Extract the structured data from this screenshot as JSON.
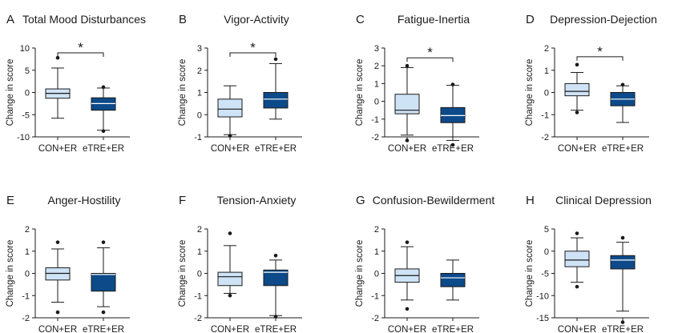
{
  "colors": {
    "con": "#cfe3f6",
    "etre": "#0d4a8a",
    "ink": "#1a1a1a"
  },
  "chart_data": [
    {
      "type": "box",
      "letter": "A",
      "title": "Total Mood Disturbances",
      "ylabel": "Change in score",
      "ylim": [
        -10,
        10
      ],
      "yticks": [
        -10,
        -5,
        0,
        5,
        10
      ],
      "categories": [
        "CON+ER",
        "eTRE+ER"
      ],
      "series": [
        {
          "name": "CON+ER",
          "whisker_low": -5.8,
          "q1": -1.3,
          "median": -0.2,
          "q3": 0.8,
          "whisker_high": 5.5,
          "outliers": [
            7.8
          ]
        },
        {
          "name": "eTRE+ER",
          "whisker_low": -8.5,
          "q1": -4.0,
          "median": -2.5,
          "q3": -1.2,
          "whisker_high": 1.0,
          "outliers": [
            1.2,
            -8.7
          ]
        }
      ],
      "significance": "*"
    },
    {
      "type": "box",
      "letter": "B",
      "title": "Vigor-Activity",
      "ylabel": "Change in score",
      "ylim": [
        -1,
        3
      ],
      "yticks": [
        -1,
        0,
        1,
        2,
        3
      ],
      "categories": [
        "CON+ER",
        "eTRE+ER"
      ],
      "series": [
        {
          "name": "CON+ER",
          "whisker_low": -0.9,
          "q1": -0.1,
          "median": 0.25,
          "q3": 0.7,
          "whisker_high": 1.3,
          "outliers": [
            -0.95
          ]
        },
        {
          "name": "eTRE+ER",
          "whisker_low": -0.2,
          "q1": 0.3,
          "median": 0.7,
          "q3": 1.0,
          "whisker_high": 2.3,
          "outliers": [
            2.5
          ]
        }
      ],
      "significance": "*"
    },
    {
      "type": "box",
      "letter": "C",
      "title": "Fatigue-Inertia",
      "ylabel": "Change in score",
      "ylim": [
        -2,
        3
      ],
      "yticks": [
        -2,
        -1,
        0,
        1,
        2,
        3
      ],
      "categories": [
        "CON+ER",
        "eTRE+ER"
      ],
      "series": [
        {
          "name": "CON+ER",
          "whisker_low": -1.9,
          "q1": -0.7,
          "median": -0.5,
          "q3": 0.4,
          "whisker_high": 1.9,
          "outliers": [
            -2.2,
            2.0
          ]
        },
        {
          "name": "eTRE+ER",
          "whisker_low": -2.2,
          "q1": -1.2,
          "median": -0.8,
          "q3": -0.35,
          "whisker_high": 0.9,
          "outliers": [
            -2.45,
            0.95
          ]
        }
      ],
      "significance": "*"
    },
    {
      "type": "box",
      "letter": "D",
      "title": "Depression-Dejection",
      "ylabel": "Change in score",
      "ylim": [
        -2,
        2
      ],
      "yticks": [
        -2,
        -1,
        0,
        1,
        2
      ],
      "categories": [
        "CON+ER",
        "eTRE+ER"
      ],
      "series": [
        {
          "name": "CON+ER",
          "whisker_low": -0.8,
          "q1": -0.15,
          "median": 0.05,
          "q3": 0.4,
          "whisker_high": 0.9,
          "outliers": [
            -0.9,
            1.25
          ]
        },
        {
          "name": "eTRE+ER",
          "whisker_low": -1.35,
          "q1": -0.6,
          "median": -0.3,
          "q3": 0.0,
          "whisker_high": 0.3,
          "outliers": [
            0.35
          ]
        }
      ],
      "significance": "*"
    },
    {
      "type": "box",
      "letter": "E",
      "title": "Anger-Hostility",
      "ylabel": "Change in score",
      "ylim": [
        -2,
        2
      ],
      "yticks": [
        -2,
        -1,
        0,
        1,
        2
      ],
      "categories": [
        "CON+ER",
        "eTRE+ER"
      ],
      "series": [
        {
          "name": "CON+ER",
          "whisker_low": -1.3,
          "q1": -0.3,
          "median": 0.0,
          "q3": 0.25,
          "whisker_high": 1.1,
          "outliers": [
            1.4,
            -1.75
          ]
        },
        {
          "name": "eTRE+ER",
          "whisker_low": -1.5,
          "q1": -0.8,
          "median": -0.05,
          "q3": 0.0,
          "whisker_high": 1.15,
          "outliers": [
            1.4,
            -1.75
          ]
        }
      ],
      "significance": ""
    },
    {
      "type": "box",
      "letter": "F",
      "title": "Tension-Anxiety",
      "ylabel": "Change in score",
      "ylim": [
        -2,
        2
      ],
      "yticks": [
        -2,
        -1,
        0,
        1,
        2
      ],
      "categories": [
        "CON+ER",
        "eTRE+ER"
      ],
      "series": [
        {
          "name": "CON+ER",
          "whisker_low": -0.9,
          "q1": -0.55,
          "median": -0.15,
          "q3": 0.05,
          "whisker_high": 1.25,
          "outliers": [
            1.8,
            -1.0
          ]
        },
        {
          "name": "eTRE+ER",
          "whisker_low": -1.9,
          "q1": -0.55,
          "median": 0.05,
          "q3": 0.15,
          "whisker_high": 0.6,
          "outliers": [
            0.8,
            -1.95
          ]
        }
      ],
      "significance": ""
    },
    {
      "type": "box",
      "letter": "G",
      "title": "Confusion-Bewilderment",
      "ylabel": "Change in score",
      "ylim": [
        -2,
        2
      ],
      "yticks": [
        -2,
        -1,
        0,
        1,
        2
      ],
      "categories": [
        "CON+ER",
        "eTRE+ER"
      ],
      "series": [
        {
          "name": "CON+ER",
          "whisker_low": -1.2,
          "q1": -0.4,
          "median": -0.1,
          "q3": 0.2,
          "whisker_high": 1.2,
          "outliers": [
            1.4,
            -1.6
          ]
        },
        {
          "name": "eTRE+ER",
          "whisker_low": -1.2,
          "q1": -0.6,
          "median": -0.2,
          "q3": 0.0,
          "whisker_high": 0.6,
          "outliers": []
        }
      ],
      "significance": ""
    },
    {
      "type": "box",
      "letter": "H",
      "title": "Clinical Depression",
      "ylabel": "Change in score",
      "ylim": [
        -15,
        5
      ],
      "yticks": [
        -15,
        -10,
        -5,
        0,
        5
      ],
      "categories": [
        "CON+ER",
        "eTRE+ER"
      ],
      "series": [
        {
          "name": "CON+ER",
          "whisker_low": -7,
          "q1": -3.5,
          "median": -2,
          "q3": 0,
          "whisker_high": 3,
          "outliers": [
            4,
            -8
          ]
        },
        {
          "name": "eTRE+ER",
          "whisker_low": -13.5,
          "q1": -4,
          "median": -2,
          "q3": -1,
          "whisker_high": 2,
          "outliers": [
            3,
            -16
          ]
        }
      ],
      "significance": ""
    }
  ]
}
